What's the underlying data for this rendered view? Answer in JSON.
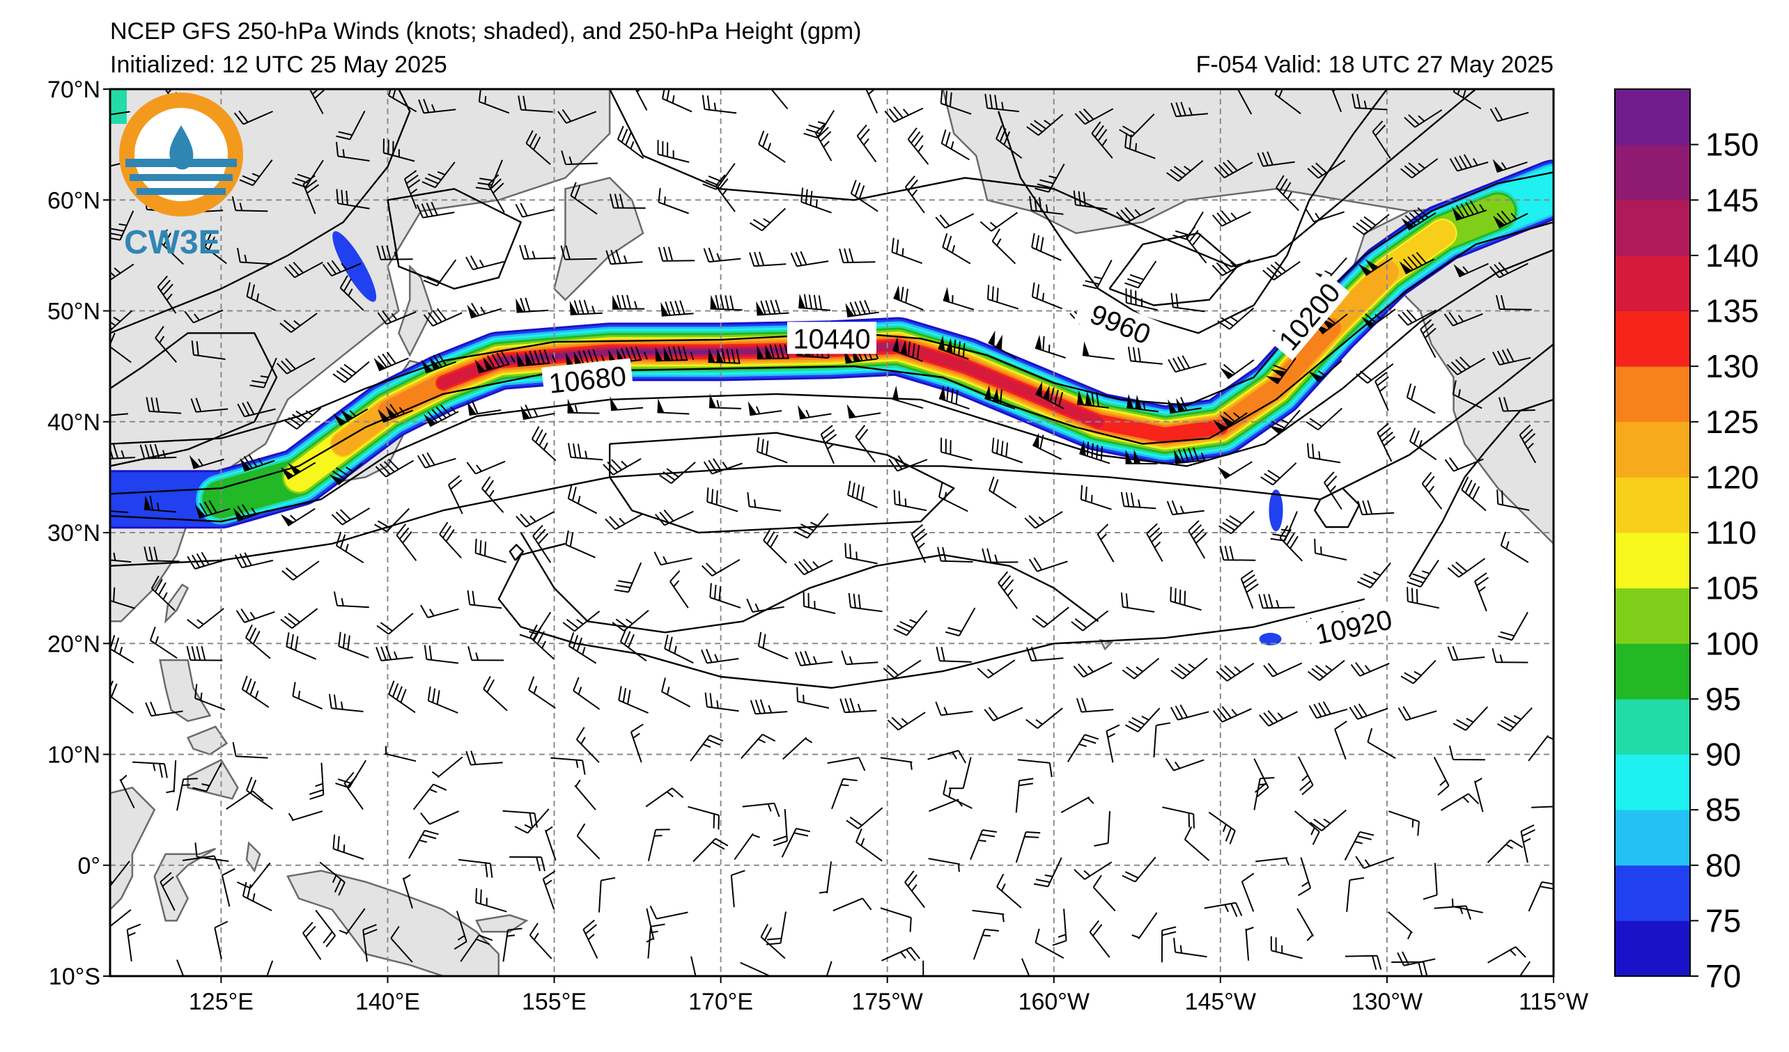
{
  "title": {
    "line1": "NCEP GFS 250-hPa Winds (knots; shaded), and 250-hPa Height (gpm)",
    "initialized": "Initialized: 12 UTC 25 May 2025",
    "valid": "F-054  Valid: 18 UTC 27 May 2025"
  },
  "logo": {
    "text": "CW3E",
    "color": "#2f86b3",
    "ring_color": "#f39a1e"
  },
  "map": {
    "lon_range": [
      115,
      245
    ],
    "lat_range": [
      -10,
      70
    ],
    "land_color": "#e3e3e3",
    "coast_color": "#6a6a6a",
    "grid": true,
    "lat_ticks": [
      {
        "lat": 70,
        "label": "70°N"
      },
      {
        "lat": 60,
        "label": "60°N"
      },
      {
        "lat": 50,
        "label": "50°N"
      },
      {
        "lat": 40,
        "label": "40°N"
      },
      {
        "lat": 30,
        "label": "30°N"
      },
      {
        "lat": 20,
        "label": "20°N"
      },
      {
        "lat": 10,
        "label": "10°N"
      },
      {
        "lat": 0,
        "label": "0°"
      },
      {
        "lat": -10,
        "label": "10°S"
      }
    ],
    "lon_ticks": [
      {
        "lon": 125,
        "label": "125°E"
      },
      {
        "lon": 140,
        "label": "140°E"
      },
      {
        "lon": 155,
        "label": "155°E"
      },
      {
        "lon": 170,
        "label": "170°E"
      },
      {
        "lon": 185,
        "label": "175°W"
      },
      {
        "lon": 200,
        "label": "160°W"
      },
      {
        "lon": 215,
        "label": "145°W"
      },
      {
        "lon": 230,
        "label": "130°W"
      },
      {
        "lon": 245,
        "label": "115°W"
      }
    ],
    "contour_labels": [
      {
        "text": "10680",
        "lon": 158,
        "lat": 43.8,
        "angle": -6
      },
      {
        "text": "10440",
        "lon": 180,
        "lat": 47.5,
        "angle": 0
      },
      {
        "text": "9960",
        "lon": 206,
        "lat": 48.8,
        "angle": 22
      },
      {
        "text": "10200",
        "lon": 223,
        "lat": 49.5,
        "angle": -50
      },
      {
        "text": "10920",
        "lon": 227,
        "lat": 21.5,
        "angle": -12
      }
    ]
  },
  "colorbar": {
    "ticks": [
      "70",
      "75",
      "80",
      "85",
      "90",
      "95",
      "100",
      "105",
      "110",
      "120",
      "125",
      "130",
      "135",
      "140",
      "145",
      "150"
    ],
    "colors": [
      "#1a12c9",
      "#2140f0",
      "#24c1f5",
      "#1ff0f0",
      "#22dca8",
      "#22b826",
      "#7fcf1a",
      "#f7f71d",
      "#f7cf1b",
      "#f7ab1c",
      "#f7821b",
      "#f7241c",
      "#d51a3c",
      "#b01a58",
      "#8e1a72",
      "#701c8d"
    ]
  }
}
